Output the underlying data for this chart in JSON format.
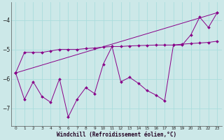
{
  "xlabel": "Windchill (Refroidissement éolien,°C)",
  "background_color": "#cce8e8",
  "line_color": "#880088",
  "grid_color": "#aadddd",
  "xlim": [
    -0.5,
    23.5
  ],
  "ylim": [
    -7.6,
    -3.4
  ],
  "yticks": [
    -7,
    -6,
    -5,
    -4
  ],
  "xticks": [
    0,
    1,
    2,
    3,
    4,
    5,
    6,
    7,
    8,
    9,
    10,
    11,
    12,
    13,
    14,
    15,
    16,
    17,
    18,
    19,
    20,
    21,
    22,
    23
  ],
  "series1_x": [
    0,
    1,
    2,
    3,
    4,
    5,
    6,
    7,
    8,
    9,
    10,
    11,
    12,
    13,
    14,
    15,
    16,
    17,
    18,
    19,
    20,
    21,
    22,
    23
  ],
  "series1_y": [
    -5.8,
    -5.1,
    -5.1,
    -5.1,
    -5.05,
    -5.0,
    -5.0,
    -5.0,
    -4.97,
    -4.95,
    -4.92,
    -4.9,
    -4.9,
    -4.88,
    -4.87,
    -4.86,
    -4.85,
    -4.85,
    -4.85,
    -4.82,
    -4.8,
    -4.78,
    -4.76,
    -4.72
  ],
  "series2_x": [
    0,
    1,
    2,
    3,
    4,
    5,
    6,
    7,
    8,
    9,
    10,
    11,
    12,
    13,
    14,
    15,
    16,
    17,
    18,
    19,
    20,
    21,
    22,
    23
  ],
  "series2_y": [
    -5.8,
    -6.7,
    -6.1,
    -6.6,
    -6.8,
    -6.0,
    -7.3,
    -6.7,
    -6.3,
    -6.5,
    -5.5,
    -4.9,
    -6.1,
    -5.95,
    -6.15,
    -6.4,
    -6.55,
    -6.75,
    -4.85,
    -4.85,
    -4.5,
    -3.9,
    -4.25,
    -3.75
  ],
  "series3_x": [
    0,
    23
  ],
  "series3_y": [
    -5.8,
    -3.75
  ]
}
